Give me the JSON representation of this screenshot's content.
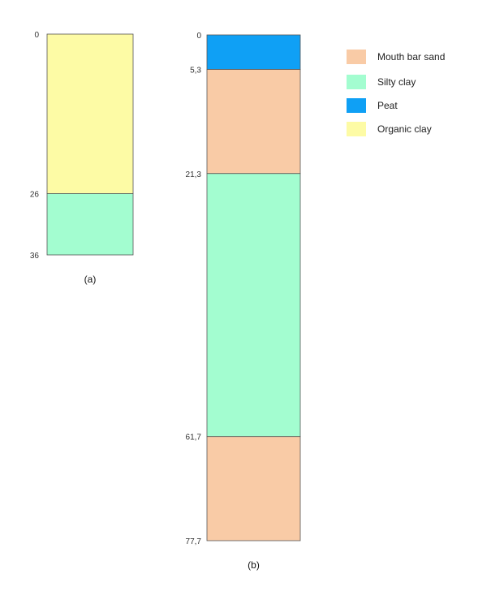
{
  "legend": [
    {
      "label": "Mouth bar sand",
      "color": "#f9cba6"
    },
    {
      "label": "Silty clay",
      "color": "#a3fdd0"
    },
    {
      "label": "Peat",
      "color": "#0fa0f5"
    },
    {
      "label": "Organic clay",
      "color": "#fdfba5"
    }
  ],
  "columns": [
    {
      "caption": "(a)",
      "boundary_labels": [
        "0",
        "26",
        "36"
      ],
      "layers": [
        {
          "material": "Organic clay",
          "top": 0,
          "bottom": 26
        },
        {
          "material": "Silty clay",
          "top": 26,
          "bottom": 36
        }
      ]
    },
    {
      "caption": "(b)",
      "boundary_labels": [
        "0",
        "5,3",
        "21,3",
        "61,7",
        "77,7"
      ],
      "layers": [
        {
          "material": "Peat",
          "top": 0,
          "bottom": 5.3
        },
        {
          "material": "Mouth bar sand",
          "top": 5.3,
          "bottom": 21.3
        },
        {
          "material": "Silty clay",
          "top": 21.3,
          "bottom": 61.7
        },
        {
          "material": "Mouth bar sand",
          "top": 61.7,
          "bottom": 77.7
        }
      ]
    }
  ]
}
